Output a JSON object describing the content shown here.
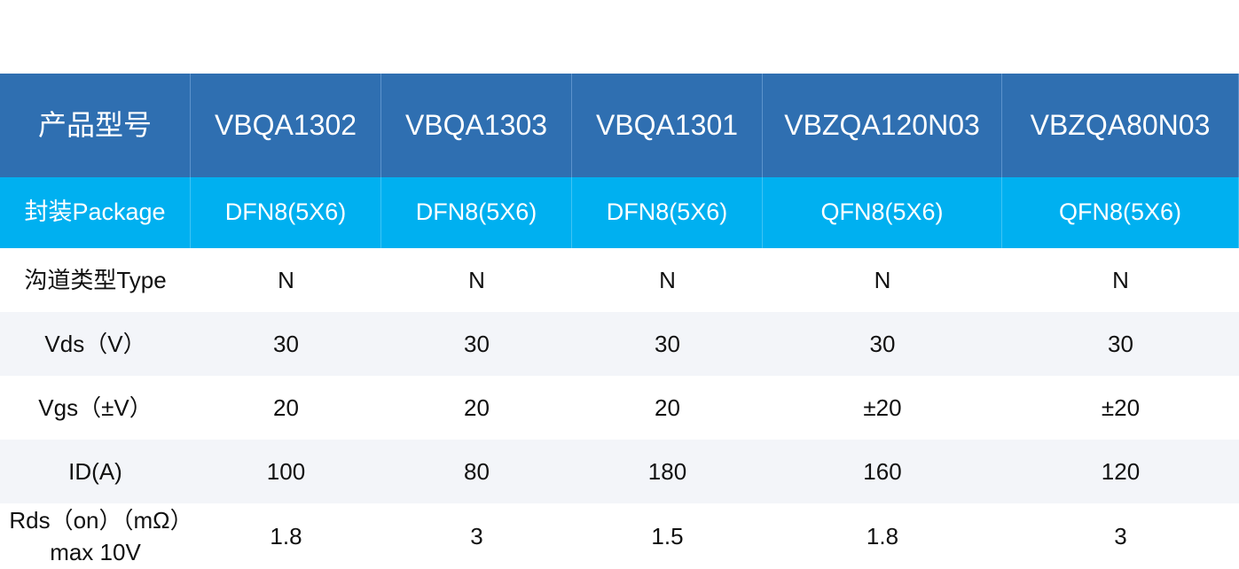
{
  "table": {
    "header": [
      "产品型号",
      "VBQA1302",
      "VBQA1303",
      "VBQA1301",
      "VBZQA120N03",
      "VBZQA80N03"
    ],
    "rows": [
      [
        "封装Package",
        "DFN8(5X6)",
        "DFN8(5X6)",
        "DFN8(5X6)",
        "QFN8(5X6)",
        "QFN8(5X6)"
      ],
      [
        "沟道类型Type",
        "N",
        "N",
        "N",
        "N",
        "N"
      ],
      [
        "Vds（V）",
        "30",
        "30",
        "30",
        "30",
        "30"
      ],
      [
        "Vgs（±V）",
        "20",
        "20",
        "20",
        "±20",
        "±20"
      ],
      [
        "ID(A)",
        "100",
        "80",
        "180",
        "160",
        "120"
      ],
      [
        "Rds（on）（mΩ）max 10V",
        "1.8",
        "3",
        "1.5",
        "1.8",
        "3"
      ]
    ]
  }
}
